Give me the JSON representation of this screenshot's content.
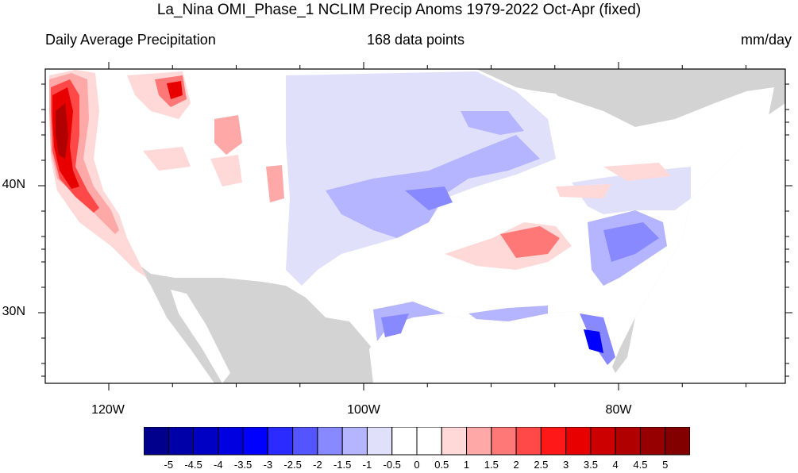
{
  "title": "La_Nina OMI_Phase_1 NCLIM Precip Anoms 1979-2022 Oct-Apr (fixed)",
  "left_string": "Daily Average Precipitation",
  "center_string": "168 data points",
  "right_string": "mm/day",
  "lat_labels": [
    "40N",
    "30N"
  ],
  "lon_labels": [
    "120W",
    "100W",
    "80W"
  ],
  "colors": {
    "land_outside": "#d3d3d3",
    "water": "#ffffff",
    "neutral": "#ffffff"
  },
  "colorbar": {
    "levels": [
      "-5",
      "-4.5",
      "-4",
      "-3.5",
      "-3",
      "-2.5",
      "-2",
      "-1.5",
      "-1",
      "-0.5",
      "0",
      "0.5",
      "1",
      "1.5",
      "2",
      "2.5",
      "3",
      "3.5",
      "4",
      "4.5",
      "5"
    ],
    "colors": [
      "#00008c",
      "#0000a8",
      "#0000c4",
      "#0000e0",
      "#0000ff",
      "#2b2bff",
      "#5555ff",
      "#8888ff",
      "#b4b4ff",
      "#e0e0fa",
      "#ffffff",
      "#ffffff",
      "#ffd8d8",
      "#ffa8a8",
      "#ff7878",
      "#ff4848",
      "#ff1818",
      "#e80000",
      "#cc0000",
      "#b00000",
      "#960000",
      "#820000"
    ]
  }
}
